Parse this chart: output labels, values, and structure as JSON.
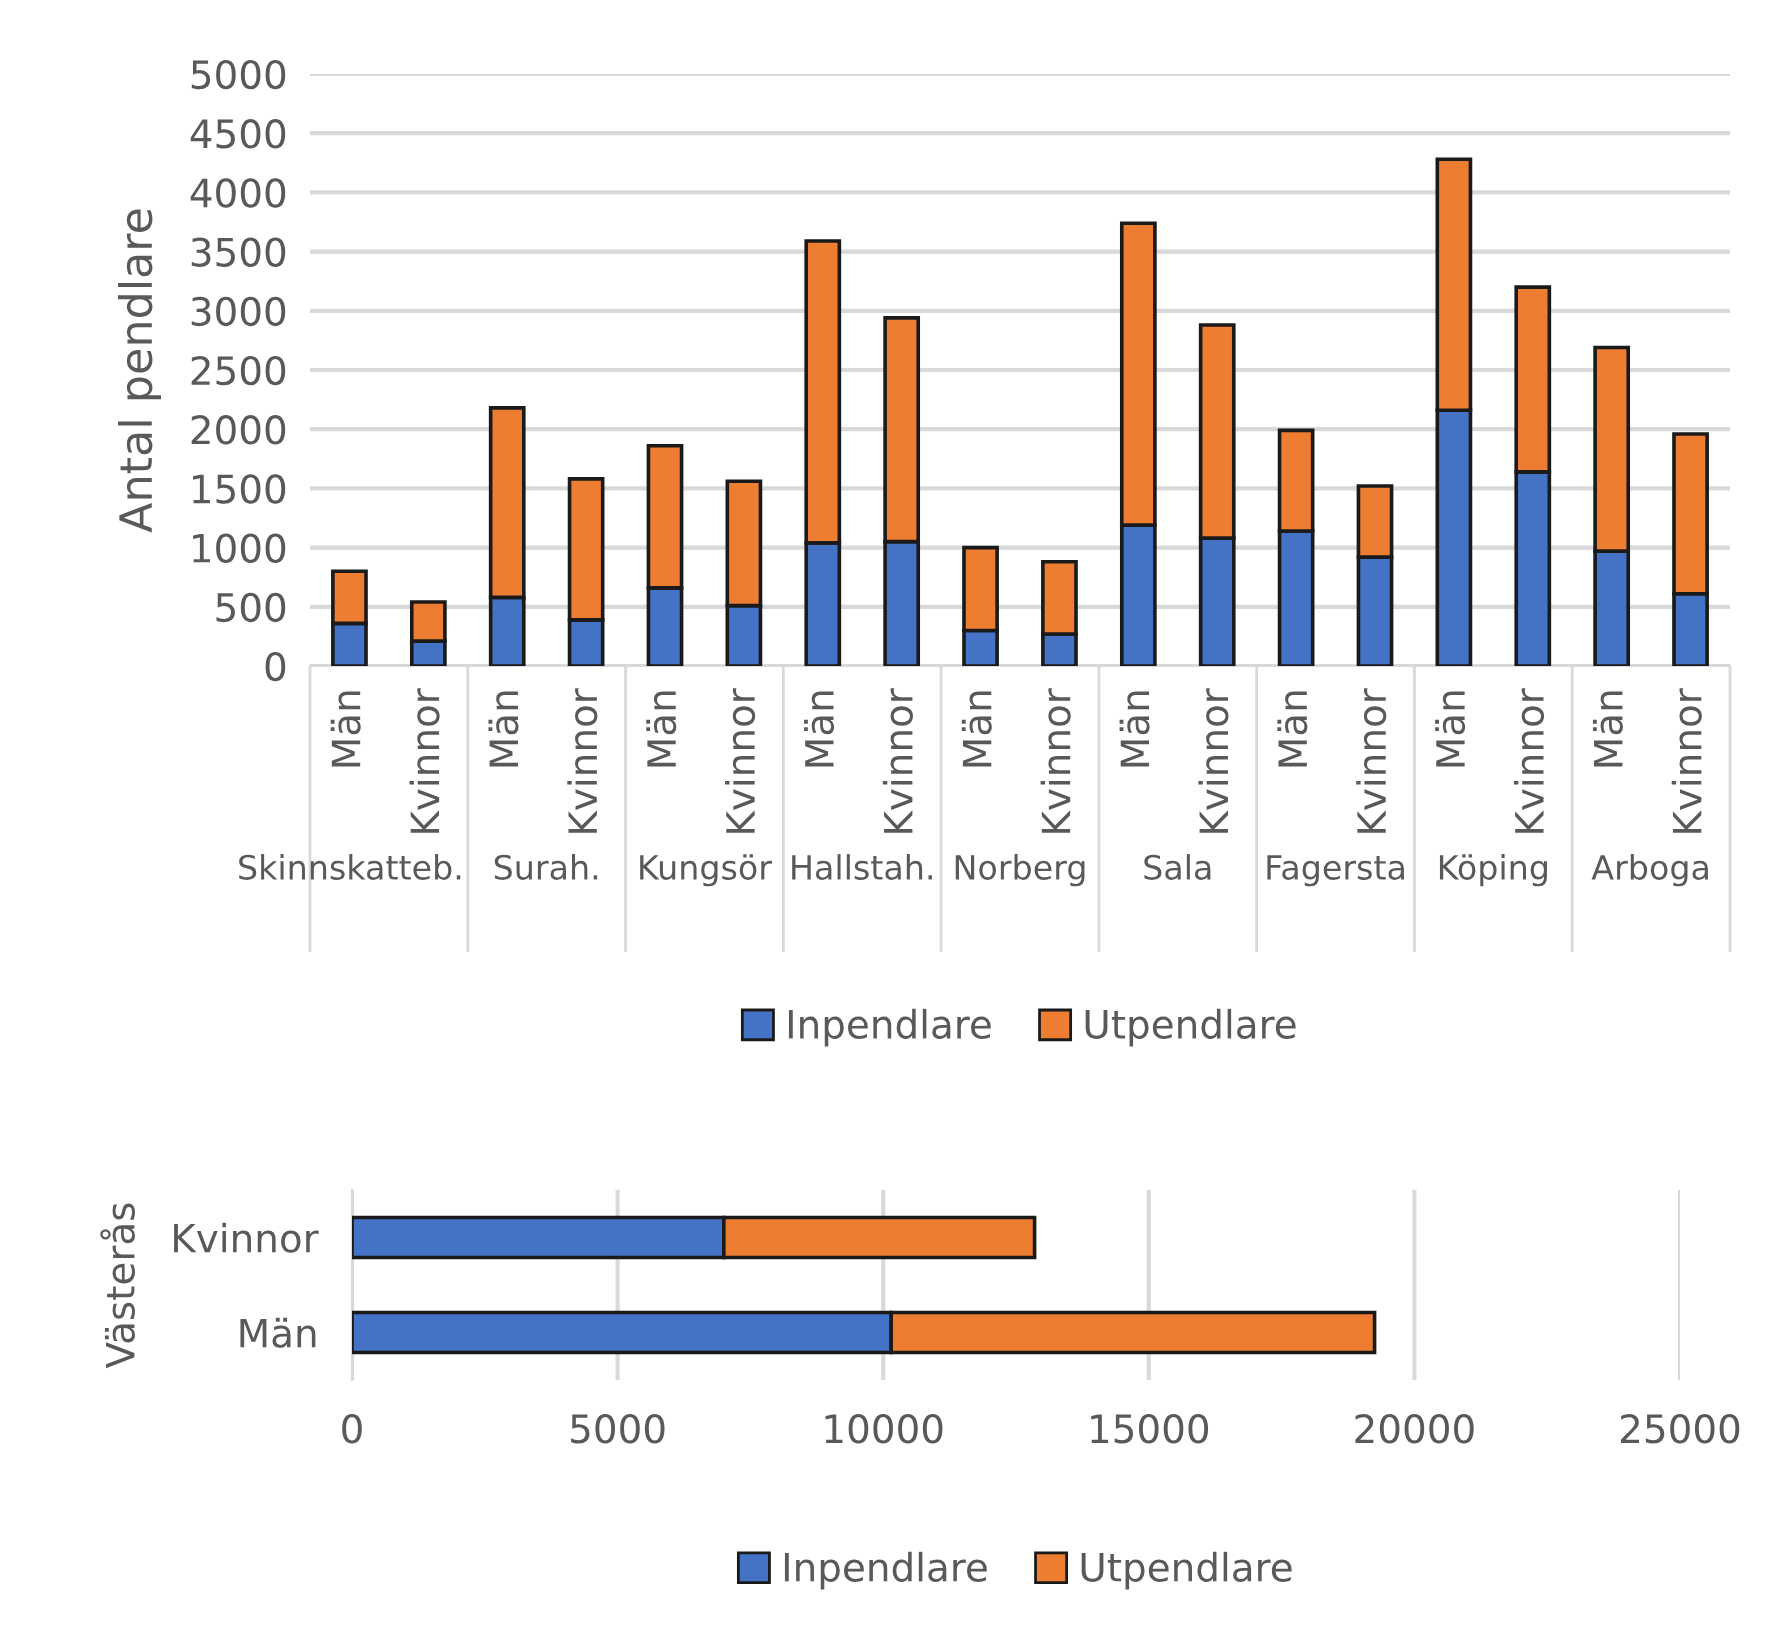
{
  "chart_data": [
    {
      "type": "bar",
      "stacked": true,
      "ylabel": "Antal pendlare",
      "categories": [
        "Män",
        "Kvinnor",
        "Män",
        "Kvinnor",
        "Män",
        "Kvinnor",
        "Män",
        "Kvinnor",
        "Män",
        "Kvinnor",
        "Män",
        "Kvinnor",
        "Män",
        "Kvinnor",
        "Män",
        "Kvinnor",
        "Män",
        "Kvinnor"
      ],
      "annotations": [
        "Skinnskatteb.",
        "Surah.",
        "Kungsör",
        "Hallstah.",
        "Norberg",
        "Sala",
        "Fagersta",
        "Köping",
        "Arboga"
      ],
      "series": [
        {
          "name": "Inpendlare",
          "color": "#4472c4",
          "values": [
            360,
            210,
            580,
            390,
            660,
            510,
            1040,
            1050,
            300,
            270,
            1190,
            1080,
            1140,
            920,
            2160,
            1640,
            970,
            610
          ]
        },
        {
          "name": "Utpendlare",
          "color": "#ed7d31",
          "values": [
            440,
            330,
            1600,
            1190,
            1200,
            1050,
            2550,
            1890,
            700,
            610,
            2550,
            1800,
            850,
            600,
            2120,
            1560,
            1720,
            1350
          ]
        }
      ],
      "ylim": [
        0,
        5000
      ],
      "yticks": [
        0,
        500,
        1000,
        1500,
        2000,
        2500,
        3000,
        3500,
        4000,
        4500,
        5000
      ],
      "grid": "y",
      "legend": "bottom"
    },
    {
      "type": "bar",
      "stacked": true,
      "orientation": "horizontal",
      "ylabel": "Västerås",
      "categories": [
        "Kvinnor",
        "Män"
      ],
      "series": [
        {
          "name": "Inpendlare",
          "color": "#4472c4",
          "values": [
            7000,
            10150
          ]
        },
        {
          "name": "Utpendlare",
          "color": "#ed7d31",
          "values": [
            5850,
            9100
          ]
        }
      ],
      "xlim": [
        0,
        25000
      ],
      "xticks": [
        0,
        5000,
        10000,
        15000,
        20000,
        25000
      ],
      "grid": "x",
      "legend": "bottom"
    }
  ]
}
